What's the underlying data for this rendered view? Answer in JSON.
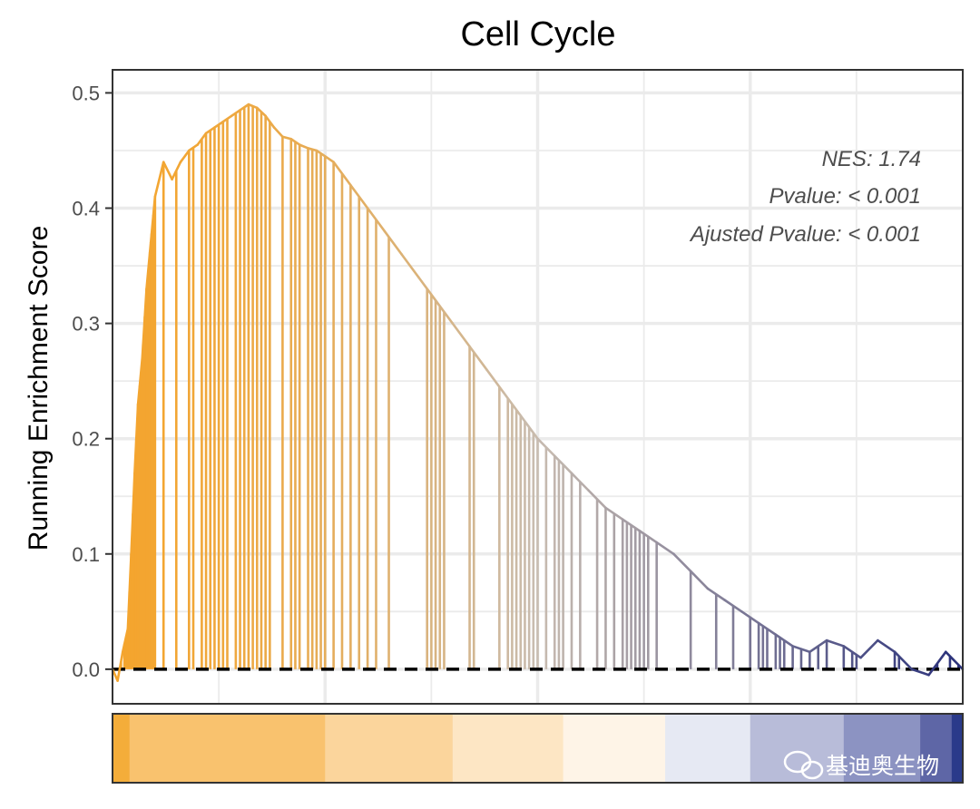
{
  "chart_data": {
    "type": "line",
    "title": "Cell Cycle",
    "xlabel": "",
    "ylabel": "Running Enrichment Score",
    "ylim": [
      -0.03,
      0.52
    ],
    "xlim": [
      0,
      1
    ],
    "y_ticks": [
      0.0,
      0.1,
      0.2,
      0.3,
      0.4,
      0.5
    ],
    "grid": true,
    "annotations": [
      "NES: 1.74",
      "Pvalue: < 0.001",
      "Ajusted Pvalue: < 0.001"
    ],
    "series": [
      {
        "x": [
          0.0,
          0.006,
          0.012,
          0.018,
          0.022,
          0.026,
          0.03,
          0.035,
          0.04,
          0.045,
          0.05,
          0.06,
          0.07,
          0.08,
          0.09,
          0.1,
          0.11,
          0.12,
          0.13,
          0.14,
          0.15,
          0.16,
          0.17,
          0.18,
          0.19,
          0.2,
          0.21,
          0.22,
          0.23,
          0.24,
          0.26,
          0.28,
          0.3,
          0.32,
          0.34,
          0.36,
          0.38,
          0.4,
          0.42,
          0.44,
          0.46,
          0.48,
          0.5,
          0.52,
          0.54,
          0.56,
          0.58,
          0.6,
          0.62,
          0.64,
          0.66,
          0.68,
          0.7,
          0.72,
          0.74,
          0.76,
          0.78,
          0.8,
          0.82,
          0.84,
          0.86,
          0.88,
          0.9,
          0.92,
          0.94,
          0.96,
          0.98,
          1.0
        ],
        "y": [
          0.0,
          -0.01,
          0.015,
          0.035,
          0.1,
          0.17,
          0.23,
          0.27,
          0.33,
          0.37,
          0.41,
          0.44,
          0.425,
          0.44,
          0.45,
          0.455,
          0.465,
          0.47,
          0.475,
          0.48,
          0.485,
          0.49,
          0.487,
          0.48,
          0.47,
          0.462,
          0.46,
          0.455,
          0.452,
          0.45,
          0.44,
          0.42,
          0.4,
          0.38,
          0.36,
          0.34,
          0.32,
          0.3,
          0.28,
          0.26,
          0.24,
          0.22,
          0.2,
          0.185,
          0.17,
          0.155,
          0.14,
          0.13,
          0.12,
          0.11,
          0.1,
          0.085,
          0.07,
          0.06,
          0.05,
          0.04,
          0.03,
          0.02,
          0.015,
          0.025,
          0.02,
          0.01,
          0.025,
          0.015,
          0.0,
          -0.005,
          0.015,
          0.0
        ]
      }
    ],
    "hits": [
      0.01,
      0.014,
      0.016,
      0.018,
      0.02,
      0.022,
      0.024,
      0.026,
      0.028,
      0.03,
      0.032,
      0.034,
      0.036,
      0.038,
      0.04,
      0.042,
      0.044,
      0.046,
      0.048,
      0.05,
      0.06,
      0.075,
      0.09,
      0.095,
      0.105,
      0.11,
      0.115,
      0.12,
      0.125,
      0.13,
      0.135,
      0.145,
      0.15,
      0.155,
      0.16,
      0.165,
      0.17,
      0.175,
      0.18,
      0.185,
      0.2,
      0.21,
      0.215,
      0.22,
      0.23,
      0.235,
      0.24,
      0.245,
      0.25,
      0.26,
      0.27,
      0.28,
      0.29,
      0.3,
      0.31,
      0.325,
      0.37,
      0.375,
      0.38,
      0.385,
      0.39,
      0.42,
      0.425,
      0.455,
      0.465,
      0.47,
      0.475,
      0.48,
      0.485,
      0.49,
      0.495,
      0.5,
      0.51,
      0.52,
      0.525,
      0.53,
      0.54,
      0.55,
      0.57,
      0.58,
      0.59,
      0.6,
      0.605,
      0.61,
      0.615,
      0.62,
      0.625,
      0.63,
      0.64,
      0.68,
      0.71,
      0.73,
      0.75,
      0.76,
      0.765,
      0.77,
      0.78,
      0.785,
      0.79,
      0.8,
      0.81,
      0.82,
      0.83,
      0.84,
      0.86,
      0.87,
      0.875,
      0.92,
      0.925,
      0.965,
      0.97,
      0.985,
      0.995
    ],
    "heat_strip": [
      "#f4ad3a",
      "#f9c26e",
      "#fbd59c",
      "#fde6c4",
      "#fef4e7",
      "#e6e9f3",
      "#b8bcd9",
      "#8c93c2",
      "#5e66a6",
      "#2a3a8a"
    ],
    "heat_strip_breaks": [
      0.0,
      0.02,
      0.25,
      0.4,
      0.53,
      0.65,
      0.75,
      0.86,
      0.95,
      0.987,
      1.0
    ],
    "colors": {
      "high": "#f4a52e",
      "mid": "#c8bcb0",
      "low": "#29307a",
      "grid": "#ebebeb",
      "frame": "#333333"
    }
  },
  "watermark": "基迪奥生物"
}
